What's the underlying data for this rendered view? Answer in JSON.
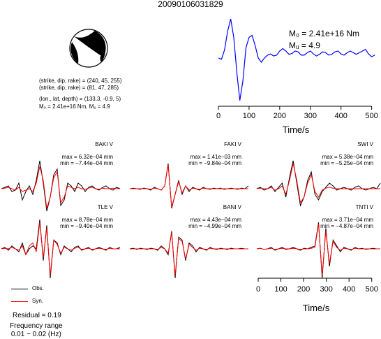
{
  "page_title": "20090106031829",
  "mechanism": {
    "label": "focal-mechanism-beachball",
    "nodal_plane_1": "(strike, dip, rake) = (240, 45, 255)",
    "nodal_plane_2": "(strike, dip, rake) = (81, 47, 285)",
    "location": "(lon., lat, depth) = (133.3, -0.9, 5)",
    "moment_line": "M₀ = 2.41e+16 Nm, Mᵤ = 4.9"
  },
  "legend": {
    "obs_label": "Obs.",
    "syn_label": "Syn.",
    "obs_color": "#000000",
    "syn_color": "#ff0000",
    "residual": "Residual = 0.19",
    "freq_title": "Frequency range",
    "freq_range": "0.01 − 0.02 (Hz)"
  },
  "chart_data": [
    {
      "type": "line",
      "title": "",
      "xlabel": "Time/s",
      "ylabel": "",
      "xlim": [
        0,
        510
      ],
      "xticks": [
        0,
        100,
        200,
        300,
        400,
        500
      ],
      "series": [
        {
          "color": "#0000ff",
          "x": [
            0,
            10,
            20,
            30,
            40,
            50,
            60,
            70,
            80,
            90,
            100,
            110,
            120,
            130,
            140,
            150,
            160,
            170,
            180,
            190,
            200,
            210,
            220,
            230,
            240,
            250,
            260,
            270,
            280,
            290,
            300,
            310,
            320,
            330,
            340,
            350,
            360,
            370,
            380,
            390,
            400,
            410,
            420,
            430,
            440,
            450,
            460,
            470,
            480,
            490,
            500,
            510
          ],
          "y": [
            0.05,
            0.02,
            0.25,
            0.7,
            1.0,
            0.55,
            -0.3,
            -0.98,
            -0.5,
            0.3,
            0.55,
            0.6,
            0.35,
            0.05,
            -0.05,
            0.05,
            0.12,
            0.15,
            0.1,
            0.12,
            0.22,
            0.28,
            0.22,
            0.14,
            0.16,
            0.22,
            0.2,
            0.12,
            0.12,
            0.18,
            0.22,
            0.15,
            0.1,
            0.14,
            0.2,
            0.18,
            0.12,
            0.14,
            0.2,
            0.22,
            0.15,
            0.12,
            0.18,
            0.22,
            0.18,
            0.14,
            0.18,
            0.22,
            0.26,
            0.15,
            0.08,
            0.12
          ]
        }
      ],
      "annotations": [
        "M₀ = 2.41e+16 Nm",
        "Mᵤ = 4.9"
      ]
    },
    {
      "type": "line",
      "xlabel": "Time/s",
      "xlim": [
        0,
        510
      ],
      "xticks": [
        0,
        100,
        200,
        300,
        400,
        500
      ],
      "stations": [
        {
          "station": "BAKI V",
          "max": "max = 6.32e−04 mm",
          "min": "min = −7.44e−04 mm",
          "obs": [
            0,
            0.05,
            0.1,
            -0.1,
            -0.05,
            0.2,
            -0.4,
            -0.1,
            0.1,
            -0.2,
            0.3,
            1.0,
            0.2,
            -0.8,
            -0.3,
            0.5,
            0.7,
            -0.6,
            -0.4,
            0.2,
            0.1,
            -0.1,
            0.2,
            0.1,
            -0.1,
            0.05,
            0.1,
            0.0,
            -0.05,
            0.05,
            0.1,
            0.0,
            -0.05,
            0.05,
            0.0
          ],
          "syn": [
            0,
            0.02,
            0.05,
            0.0,
            -0.05,
            0.05,
            -0.1,
            -0.05,
            0.0,
            -0.1,
            0.2,
            0.8,
            0.3,
            -0.7,
            -0.3,
            0.4,
            0.6,
            -0.5,
            -0.3,
            0.1,
            0.05,
            0.0,
            0.05,
            0.0,
            -0.02,
            0.02,
            0.05,
            0.0,
            -0.02,
            0.02,
            0.0,
            0.0,
            0.02,
            0.0,
            0.0
          ]
        },
        {
          "station": "FAKI V",
          "max": "max = 1.41e−03 mm",
          "min": "min = −9.84e−04 mm",
          "obs": [
            0,
            0.02,
            0.0,
            -0.02,
            0.02,
            0.0,
            -0.05,
            0.05,
            0.0,
            -0.05,
            0.1,
            0.9,
            -0.7,
            -0.2,
            0.3,
            -0.2,
            0.1,
            -0.1,
            0.05,
            0.0,
            -0.05,
            0.05,
            0.0,
            -0.02,
            0.02,
            0.0,
            0.02,
            -0.02,
            0.0,
            0.02,
            0.0,
            -0.02,
            0.02,
            0.0,
            0.1
          ],
          "syn": [
            0,
            0.0,
            0.0,
            0.0,
            0.0,
            0.0,
            -0.02,
            0.02,
            0.0,
            -0.05,
            0.1,
            0.85,
            -0.65,
            -0.2,
            0.25,
            -0.15,
            0.1,
            -0.05,
            0.02,
            0.0,
            -0.02,
            0.02,
            0.0,
            0.0,
            0.0,
            0.0,
            0.0,
            0.0,
            0.0,
            0.0,
            0.0,
            0.0,
            0.0,
            0.0,
            0.0
          ]
        },
        {
          "station": "SWI V",
          "max": "max = 5.38e−04 mm",
          "min": "min = −5.25e−04 mm",
          "obs": [
            0,
            0.05,
            -0.05,
            0.0,
            0.1,
            -0.1,
            0.05,
            0.2,
            -0.3,
            0.4,
            1.0,
            0.2,
            -0.6,
            -0.3,
            0.3,
            0.6,
            -0.2,
            -0.4,
            -0.1,
            0.05,
            0.2,
            0.1,
            -0.05,
            0.0,
            0.05,
            0.0,
            -0.05,
            0.05,
            0.1,
            0.0,
            -0.05,
            0.0,
            0.05,
            0.0,
            0.2
          ],
          "syn": [
            0,
            0.02,
            0.0,
            0.0,
            0.05,
            -0.05,
            0.0,
            0.1,
            -0.2,
            0.3,
            0.9,
            0.3,
            -0.5,
            -0.3,
            0.2,
            0.5,
            -0.1,
            -0.3,
            -0.05,
            0.02,
            0.05,
            0.02,
            0.0,
            0.0,
            0.0,
            0.0,
            0.0,
            0.0,
            0.0,
            0.0,
            0.0,
            0.0,
            0.0,
            0.0,
            0.0
          ]
        },
        {
          "station": "TLE V",
          "max": "max = 8.78e−04 mm",
          "min": "min = −9.40e−04 mm",
          "obs": [
            0,
            0.05,
            -0.05,
            0.1,
            0.0,
            -0.1,
            0.2,
            -0.2,
            0.0,
            0.1,
            0.0,
            1.0,
            -0.4,
            0.8,
            -1.0,
            0.3,
            0.2,
            -0.2,
            0.1,
            0.0,
            -0.1,
            0.05,
            0.1,
            -0.05,
            0.0,
            0.05,
            -0.05,
            0.0,
            0.05,
            0.0,
            -0.05,
            0.05,
            0.0,
            0.0,
            0.05
          ],
          "syn": [
            0,
            0.02,
            0.0,
            0.05,
            0.0,
            -0.05,
            0.1,
            -0.2,
            0.1,
            0.2,
            -0.1,
            0.9,
            -0.3,
            0.7,
            -0.9,
            0.3,
            0.15,
            -0.15,
            0.05,
            0.0,
            -0.05,
            0.02,
            0.05,
            -0.02,
            0.0,
            0.02,
            -0.02,
            0.0,
            0.02,
            0.0,
            -0.02,
            0.02,
            0.0,
            0.0,
            0.0
          ]
        },
        {
          "station": "BANI V",
          "max": "max = 4.43e−04 mm",
          "min": "min = −4.99e−04 mm",
          "obs": [
            0,
            0.02,
            -0.02,
            0.02,
            0.0,
            -0.02,
            0.02,
            0.0,
            -0.05,
            0.1,
            0.0,
            -0.2,
            0.6,
            -1.0,
            0.4,
            0.3,
            -0.4,
            0.2,
            0.1,
            -0.1,
            0.05,
            0.0,
            -0.05,
            0.05,
            0.0,
            -0.02,
            0.02,
            0.0,
            -0.02,
            0.02,
            0.0,
            0.0,
            0.02,
            0.0,
            0.0
          ],
          "syn": [
            0,
            0.0,
            0.0,
            0.0,
            0.0,
            0.0,
            0.0,
            0.0,
            -0.02,
            0.05,
            0.0,
            -0.15,
            0.55,
            -0.9,
            0.35,
            0.25,
            -0.35,
            0.15,
            0.05,
            -0.05,
            0.02,
            0.0,
            -0.02,
            0.02,
            0.0,
            0.0,
            0.0,
            0.0,
            0.0,
            0.0,
            0.0,
            0.0,
            0.0,
            0.0,
            0.0
          ]
        },
        {
          "station": "TNTI V",
          "max": "max = 3.71e−04 mm",
          "min": "min = −4.87e−04 mm",
          "obs": [
            0,
            0.02,
            -0.02,
            0.0,
            0.05,
            -0.05,
            0.0,
            0.05,
            -0.02,
            0.0,
            0.05,
            0.0,
            -0.05,
            0.02,
            0.0,
            0.05,
            0.1,
            0.9,
            -1.0,
            0.7,
            -0.6,
            0.3,
            0.1,
            -0.1,
            0.05,
            0.0,
            -0.05,
            0.05,
            0.0,
            0.02,
            -0.02,
            0.0,
            0.02,
            0.0,
            0.0
          ],
          "syn": [
            0,
            0.02,
            -0.02,
            0.0,
            0.02,
            -0.02,
            0.0,
            0.02,
            0.0,
            0.0,
            0.02,
            0.0,
            -0.02,
            0.0,
            0.0,
            0.02,
            0.05,
            0.85,
            -0.9,
            0.6,
            -0.5,
            0.25,
            0.05,
            -0.05,
            0.02,
            0.0,
            -0.02,
            0.02,
            0.0,
            0.0,
            0.0,
            0.0,
            0.0,
            0.0,
            0.0
          ]
        }
      ]
    }
  ]
}
